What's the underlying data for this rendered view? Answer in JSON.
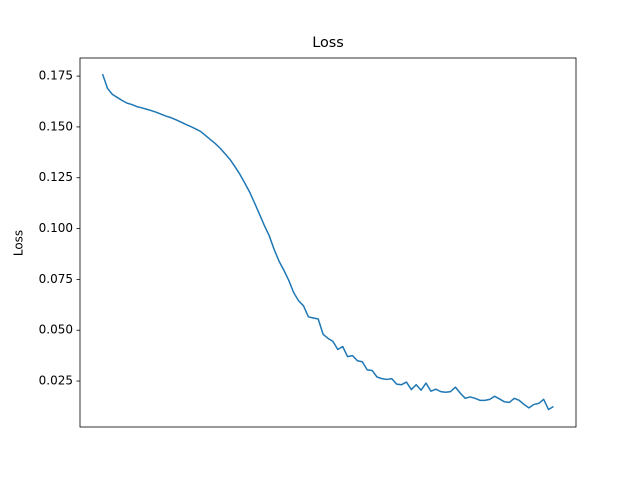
{
  "chart_data": {
    "type": "line",
    "title": "Loss",
    "ylabel": "Loss",
    "color": "#1f77b4",
    "values": [
      0.176,
      0.169,
      0.166,
      0.1645,
      0.163,
      0.1617,
      0.161,
      0.16,
      0.1594,
      0.1587,
      0.158,
      0.1572,
      0.1562,
      0.1553,
      0.1545,
      0.1535,
      0.1524,
      0.1512,
      0.1502,
      0.149,
      0.1478,
      0.1458,
      0.1438,
      0.1418,
      0.1395,
      0.1368,
      0.134,
      0.1305,
      0.1268,
      0.1225,
      0.118,
      0.1127,
      0.1072,
      0.1016,
      0.0965,
      0.0898,
      0.084,
      0.0795,
      0.0745,
      0.0685,
      0.0645,
      0.062,
      0.0566,
      0.056,
      0.0555,
      0.048,
      0.046,
      0.0445,
      0.0405,
      0.042,
      0.037,
      0.0375,
      0.035,
      0.0345,
      0.0305,
      0.0302,
      0.027,
      0.0262,
      0.0258,
      0.0262,
      0.0235,
      0.0232,
      0.0245,
      0.0208,
      0.0232,
      0.0205,
      0.024,
      0.02,
      0.021,
      0.0198,
      0.0195,
      0.0198,
      0.022,
      0.019,
      0.0165,
      0.0172,
      0.0165,
      0.0155,
      0.0155,
      0.016,
      0.0175,
      0.0162,
      0.0148,
      0.0145,
      0.0165,
      0.0155,
      0.0135,
      0.0118,
      0.0135,
      0.014,
      0.016,
      0.011,
      0.0125
    ],
    "ylim": [
      0.0024,
      0.1839
    ],
    "yticks": [
      {
        "value": 0.025,
        "label": "0.025"
      },
      {
        "value": 0.05,
        "label": "0.050"
      },
      {
        "value": 0.075,
        "label": "0.075"
      },
      {
        "value": 0.1,
        "label": "0.100"
      },
      {
        "value": 0.125,
        "label": "0.125"
      },
      {
        "value": 0.15,
        "label": "0.150"
      },
      {
        "value": 0.175,
        "label": "0.175"
      }
    ],
    "grid": false
  }
}
